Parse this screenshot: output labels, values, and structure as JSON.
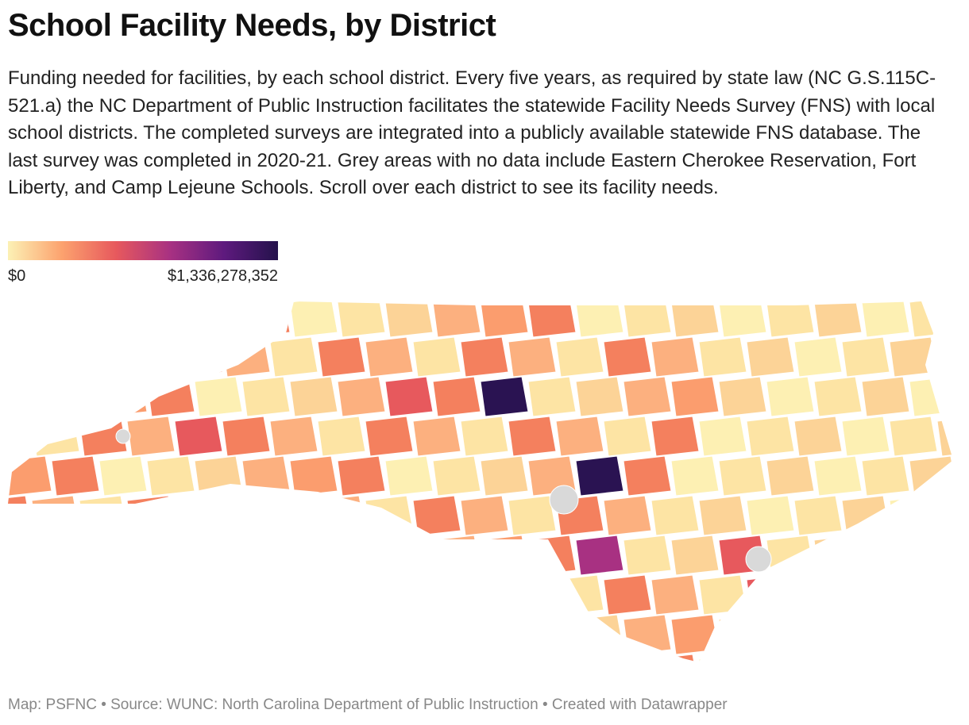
{
  "header": {
    "title": "School Facility Needs, by District",
    "description": "Funding needed for facilities, by each school district. Every five years, as required by state law (NC G.S.115C-521.a) the NC Department of Public Instruction facilitates the statewide Facility Needs Survey (FNS) with local school districts. The completed surveys are integrated into a publicly available statewide FNS database. The last survey was completed in 2020-21. Grey areas with no data include Eastern Cherokee Reservation, Fort Liberty, and Camp Lejeune Schools. Scroll over each district to see its facility needs."
  },
  "legend": {
    "min": {
      "value": 0,
      "label": "$0"
    },
    "max": {
      "value": 1336278352,
      "label": "$1,336,278,352"
    },
    "colors": [
      "#fcf1b5",
      "#fca26e",
      "#e7595d",
      "#a83182",
      "#5e1a7e",
      "#24124b"
    ]
  },
  "footer": "Map: PSFNC • Source: WUNC: North Carolina Department of Public Instruction • Created with Datawrapper"
}
